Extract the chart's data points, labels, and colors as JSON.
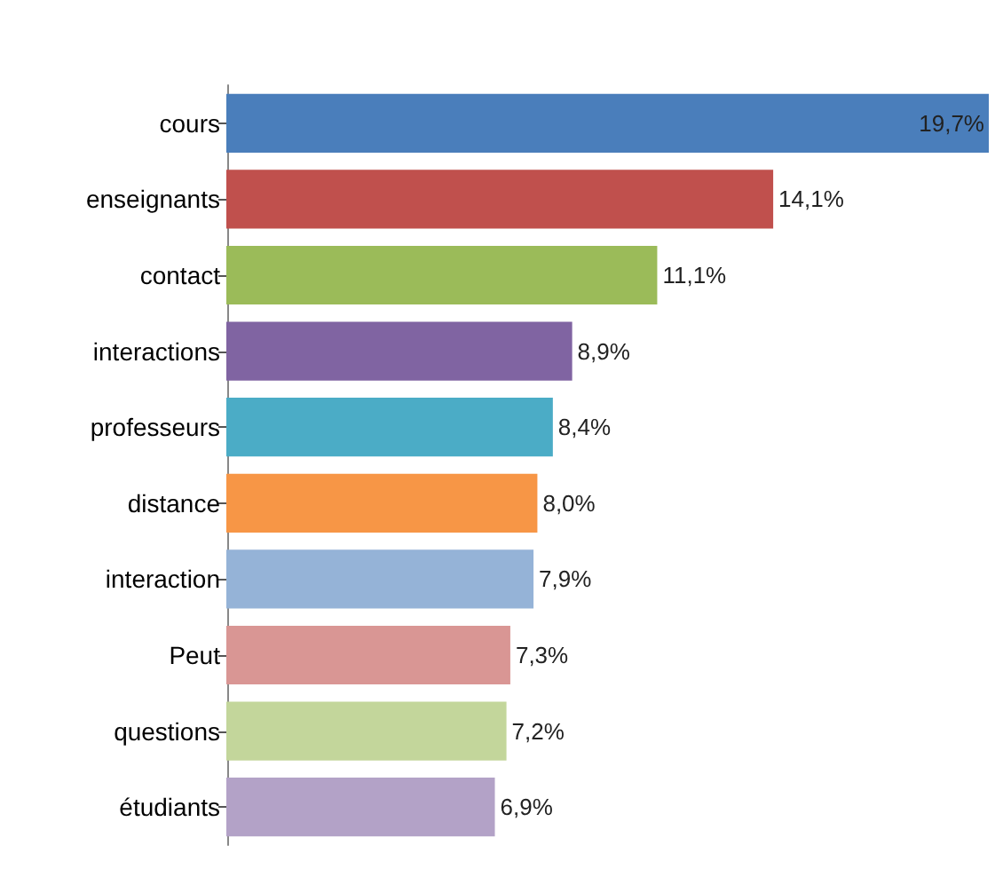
{
  "chart_data": {
    "type": "bar",
    "orientation": "horizontal",
    "categories": [
      "cours",
      "enseignants",
      "contact",
      "interactions",
      "professeurs",
      "distance",
      "interaction",
      "Peut",
      "questions",
      "étudiants"
    ],
    "values": [
      19.7,
      14.1,
      11.1,
      8.9,
      8.4,
      8.0,
      7.9,
      7.3,
      7.2,
      6.9
    ],
    "value_labels": [
      "19,7%",
      "14,1%",
      "11,1%",
      "8,9%",
      "8,4%",
      "8,0%",
      "7,9%",
      "7,3%",
      "7,2%",
      "6,9%"
    ],
    "colors": [
      "#4a7ebb",
      "#c0504d",
      "#9bbb59",
      "#8064a2",
      "#4bacc6",
      "#f79646",
      "#95b3d7",
      "#d99694",
      "#c3d69b",
      "#b3a2c7"
    ]
  }
}
